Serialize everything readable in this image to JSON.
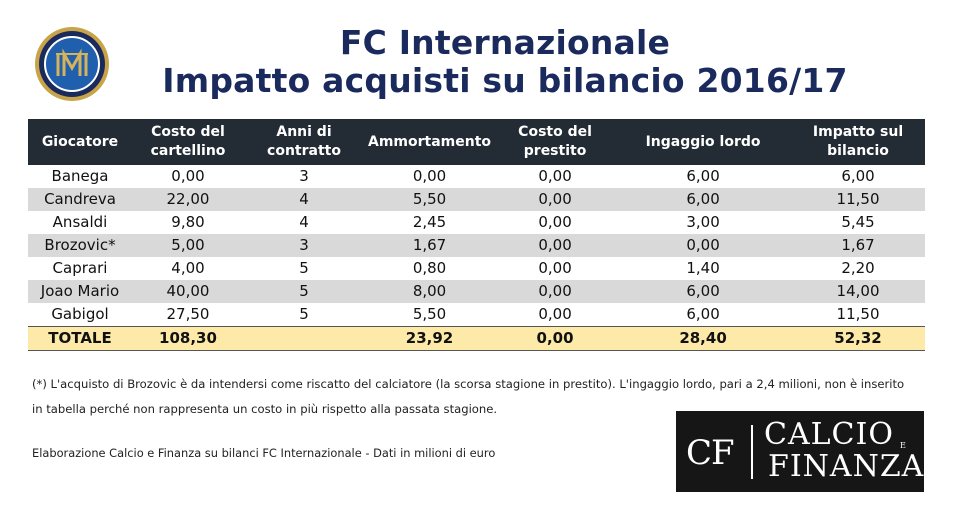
{
  "title": {
    "line1": "FC Internazionale",
    "line2": "Impatto acquisti su bilancio 2016/17"
  },
  "logo": {
    "name": "inter-crest",
    "letters": "FCIM",
    "colors": {
      "ring_outer": "#c9a347",
      "ring_inner": "#1a2a5c",
      "field": "#1f5fae",
      "text": "#d6b35a"
    }
  },
  "table": {
    "headers": [
      "Giocatore",
      "Costo del cartellino",
      "Anni di contratto",
      "Ammortamento",
      "Costo del prestito",
      "Ingaggio lordo",
      "Impatto sul bilancio"
    ],
    "rows": [
      [
        "Banega",
        "0,00",
        "3",
        "0,00",
        "0,00",
        "6,00",
        "6,00"
      ],
      [
        "Candreva",
        "22,00",
        "4",
        "5,50",
        "0,00",
        "6,00",
        "11,50"
      ],
      [
        "Ansaldi",
        "9,80",
        "4",
        "2,45",
        "0,00",
        "3,00",
        "5,45"
      ],
      [
        "Brozovic*",
        "5,00",
        "3",
        "1,67",
        "0,00",
        "0,00",
        "1,67"
      ],
      [
        "Caprari",
        "4,00",
        "5",
        "0,80",
        "0,00",
        "1,40",
        "2,20"
      ],
      [
        "Joao Mario",
        "40,00",
        "5",
        "8,00",
        "0,00",
        "6,00",
        "14,00"
      ],
      [
        "Gabigol",
        "27,50",
        "5",
        "5,50",
        "0,00",
        "6,00",
        "11,50"
      ]
    ],
    "total": [
      "TOTALE",
      "108,30",
      "",
      "23,92",
      "0,00",
      "28,40",
      "52,32"
    ]
  },
  "notes": {
    "line1": "(*) L'acquisto di Brozovic è da intendersi come riscatto del calciatore (la scorsa stagione in prestito). L'ingaggio lordo, pari a 2,4 milioni, non è inserito",
    "line2": "in tabella perché non rappresenta un costo in più rispetto alla passata stagione."
  },
  "credit": "Elaborazione Calcio e Finanza su bilanci FC Internazionale - Dati in milioni di euro",
  "brand": {
    "mark": "CF",
    "word1": "CALCIO",
    "connector": "E",
    "word2": "FINANZA"
  }
}
